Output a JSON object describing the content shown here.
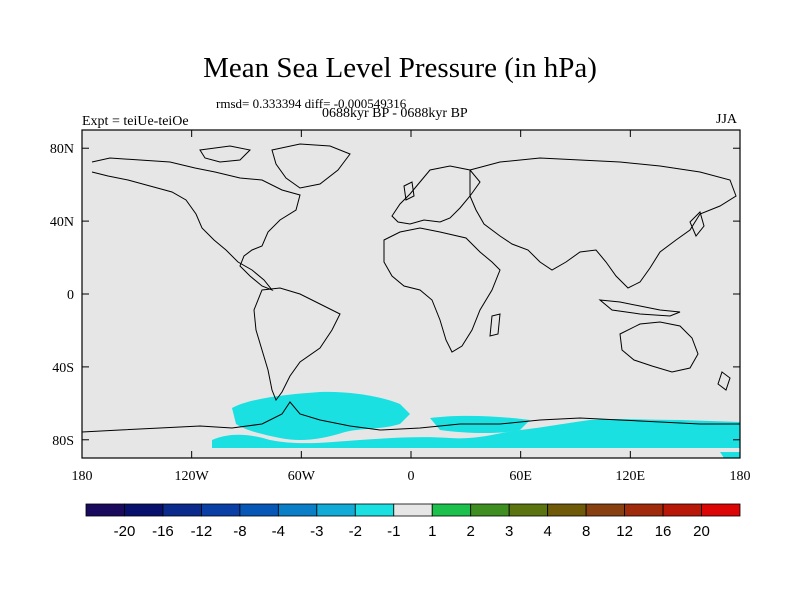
{
  "chart_data": {
    "type": "heatmap",
    "title": "Mean Sea Level Pressure (in hPa)",
    "stats": "rmsd= 0.333394 diff= -0.000549316",
    "period": "0688kyr BP - 0688kyr BP",
    "experiment": "Expt = teiUe-teiOe",
    "season": "JJA",
    "x_ticks": [
      "180",
      "120W",
      "60W",
      "0",
      "60E",
      "120E",
      "180"
    ],
    "y_ticks": [
      "80N",
      "40N",
      "0",
      "40S",
      "80S"
    ],
    "xlim": [
      -180,
      180
    ],
    "ylim": [
      -90,
      90
    ],
    "x_tick_values": [
      -180,
      -120,
      -60,
      0,
      60,
      120,
      180
    ],
    "y_tick_values": [
      80,
      40,
      0,
      -40,
      -80
    ],
    "colorbar": {
      "labels": [
        "-20",
        "-16",
        "-12",
        "-8",
        "-4",
        "-3",
        "-2",
        "-1",
        "1",
        "2",
        "3",
        "4",
        "8",
        "12",
        "16",
        "20"
      ],
      "colors": [
        "#1a0a5e",
        "#08106e",
        "#0a2a8c",
        "#0a3fa6",
        "#0657b6",
        "#0a7fc8",
        "#12aad6",
        "#1ae0e2",
        "#e6e6e6",
        "#1cc04c",
        "#3f8e22",
        "#5c7410",
        "#6e5a08",
        "#884010",
        "#a02a0c",
        "#b81808",
        "#dd0606"
      ]
    },
    "background_color": "#e6e6e6",
    "anomaly_region": {
      "description": "Southern Ocean / Antarctic band",
      "value_range": "-2 to -1",
      "color": "#1ae0e2"
    }
  }
}
